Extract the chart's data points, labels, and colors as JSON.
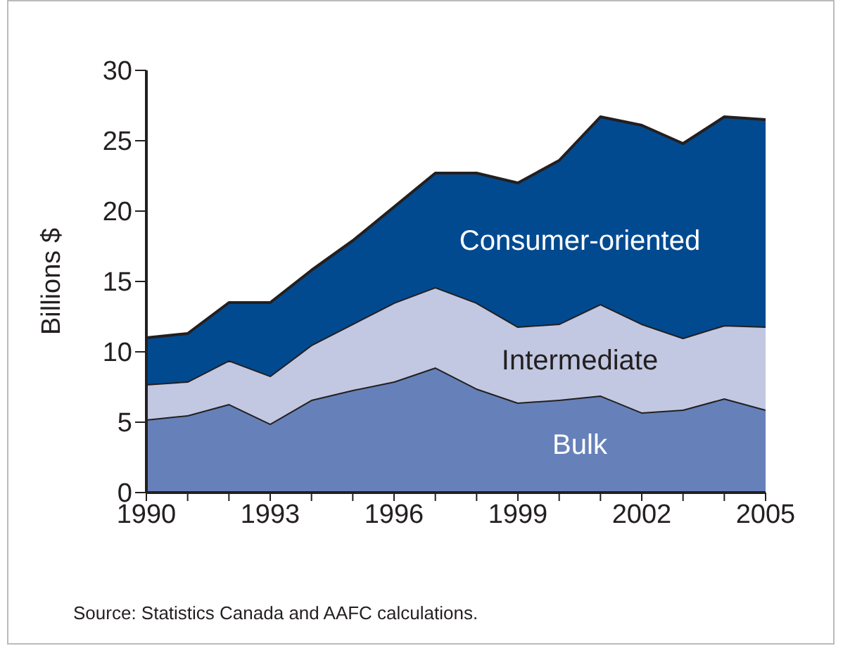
{
  "chart_data": {
    "type": "area",
    "stacked": true,
    "ylabel": "Billions $",
    "x": [
      1990,
      1991,
      1992,
      1993,
      1994,
      1995,
      1996,
      1997,
      1998,
      1999,
      2000,
      2001,
      2002,
      2003,
      2004,
      2005
    ],
    "series": [
      {
        "name": "Bulk",
        "color": "#6681b9",
        "values": [
          5.2,
          5.5,
          6.3,
          4.9,
          6.6,
          7.3,
          7.9,
          8.9,
          7.4,
          6.4,
          6.6,
          6.9,
          5.7,
          5.9,
          6.7,
          5.9
        ]
      },
      {
        "name": "Intermediate",
        "color": "#c2c8e2",
        "values": [
          2.5,
          2.4,
          3.1,
          3.4,
          3.9,
          4.7,
          5.6,
          5.7,
          6.1,
          5.4,
          5.4,
          6.5,
          6.3,
          5.1,
          5.2,
          5.9
        ]
      },
      {
        "name": "Consumer-oriented",
        "color": "#024a90",
        "values": [
          3.3,
          3.4,
          4.1,
          5.2,
          5.3,
          5.9,
          6.8,
          8.1,
          9.2,
          10.2,
          11.6,
          13.3,
          14.1,
          13.8,
          14.8,
          14.7
        ]
      }
    ],
    "xlim": [
      1990,
      2005
    ],
    "xticks": [
      1990,
      {
        "value": 1991,
        "label": null
      },
      {
        "value": 1992,
        "label": null
      },
      1993,
      {
        "value": 1994,
        "label": null
      },
      {
        "value": 1995,
        "label": null
      },
      1996,
      {
        "value": 1997,
        "label": null
      },
      {
        "value": 1998,
        "label": null
      },
      1999,
      {
        "value": 2000,
        "label": null
      },
      {
        "value": 2001,
        "label": null
      },
      2002,
      {
        "value": 2003,
        "label": null
      },
      {
        "value": 2004,
        "label": null
      },
      2005
    ],
    "ylim": [
      0,
      30
    ],
    "yticks": [
      0,
      5,
      10,
      15,
      20,
      25,
      30
    ],
    "annotations": [
      "Source: Statistics Canada and AAFC calculations."
    ]
  }
}
